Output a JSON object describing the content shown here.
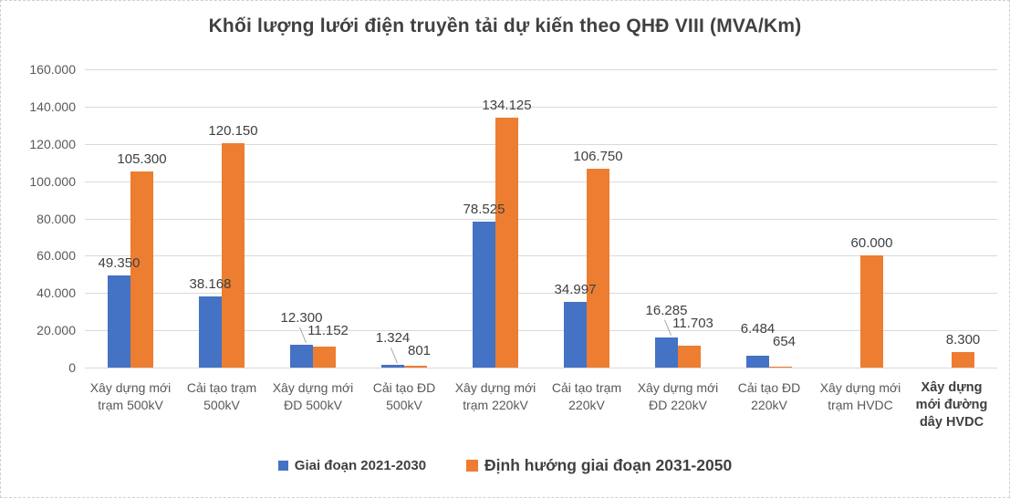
{
  "chart_data": {
    "type": "bar",
    "title": "Khối lượng lưới điện truyền tải dự kiến theo QHĐ VIII (MVA/Km)",
    "categories": [
      "Xây dựng mới trạm 500kV",
      "Cải tạo trạm 500kV",
      "Xây dựng mới ĐD 500kV",
      "Cải tạo ĐD 500kV",
      "Xây dựng mới trạm 220kV",
      "Cải tạo trạm 220kV",
      "Xây dựng mới ĐD 220kV",
      "Cải tạo ĐD 220kV",
      "Xây dựng mới trạm HVDC",
      "Xây dựng mới đường dây HVDC"
    ],
    "series": [
      {
        "name": "Giai đoạn 2021-2030",
        "color": "#4472C4",
        "values": [
          49350,
          38168,
          12300,
          1324,
          78525,
          34997,
          16285,
          6484,
          null,
          null
        ]
      },
      {
        "name": "Định hướng giai đoạn 2031-2050",
        "color": "#ED7D31",
        "values": [
          105300,
          120150,
          11152,
          801,
          134125,
          106750,
          11703,
          654,
          60000,
          8300
        ]
      }
    ],
    "ylim": [
      0,
      160000
    ],
    "ytick_step": 20000,
    "grid": true,
    "legend_position": "bottom",
    "number_format": "thousands-dot",
    "stagger_label_threshold": 20000,
    "leader_line_groups": [
      2,
      3,
      6
    ],
    "bold_category_index": 9,
    "colors": {
      "title_text": "#404040",
      "axis_text": "#595959",
      "data_label_text": "#404040",
      "gridline": "#d9d9d9",
      "leader_line": "#a6a6a6"
    }
  }
}
